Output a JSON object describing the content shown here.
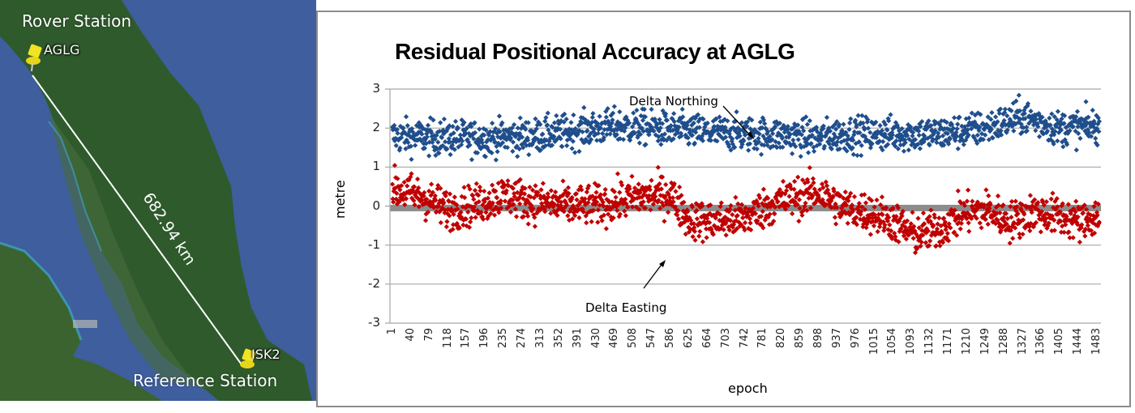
{
  "map": {
    "rover_label": "Rover Station",
    "rover_pin": "AGLG",
    "reference_label": "Reference Station",
    "reference_pin": "ISK2",
    "distance_label": "682.94 km",
    "icons": [
      "pushpin-icon",
      "pushpin-icon"
    ]
  },
  "chart_data": {
    "type": "scatter",
    "title": "Residual Positional Accuracy at AGLG",
    "xlabel": "epoch",
    "ylabel": "metre",
    "ylim": [
      -3,
      3
    ],
    "yticks": [
      "3",
      "2",
      "1",
      "0",
      "-1",
      "-2",
      "-3"
    ],
    "xticks": [
      "1",
      "40",
      "79",
      "118",
      "157",
      "196",
      "235",
      "274",
      "313",
      "352",
      "391",
      "430",
      "469",
      "508",
      "547",
      "586",
      "625",
      "664",
      "703",
      "742",
      "781",
      "820",
      "859",
      "898",
      "937",
      "976",
      "1015",
      "1054",
      "1093",
      "1132",
      "1171",
      "1210",
      "1249",
      "1288",
      "1327",
      "1366",
      "1405",
      "1444",
      "1483"
    ],
    "x_range": [
      1,
      1500
    ],
    "grid": true,
    "legend": "none",
    "reference_band": {
      "y": -0.05,
      "color": "#8c8c8c"
    },
    "annotations": [
      {
        "text": "Delta Northing",
        "points_to": "northing series"
      },
      {
        "text": "Delta Easting",
        "points_to": "easting series"
      }
    ],
    "series": [
      {
        "name": "Delta Northing",
        "color": "#1f4e8c",
        "trend_epochs": [
          1,
          100,
          200,
          300,
          400,
          469,
          550,
          650,
          750,
          850,
          898,
          950,
          1050,
          1150,
          1250,
          1327,
          1400,
          1500
        ],
        "trend_values": [
          1.8,
          1.75,
          1.75,
          1.8,
          1.95,
          2.05,
          2.0,
          1.9,
          1.85,
          1.8,
          1.75,
          1.85,
          1.85,
          1.85,
          2.0,
          2.3,
          2.0,
          2.05
        ],
        "spread": 0.22
      },
      {
        "name": "Delta Easting",
        "color": "#c00000",
        "trend_epochs": [
          1,
          60,
          120,
          180,
          240,
          300,
          380,
          450,
          520,
          586,
          625,
          680,
          740,
          820,
          898,
          950,
          1000,
          1050,
          1100,
          1150,
          1200,
          1250,
          1300,
          1350,
          1400,
          1450,
          1500
        ],
        "trend_values": [
          0.45,
          0.25,
          -0.1,
          0.05,
          0.3,
          0.1,
          0.0,
          0.05,
          0.25,
          0.3,
          -0.35,
          -0.4,
          -0.3,
          0.15,
          0.35,
          -0.05,
          -0.15,
          -0.35,
          -0.75,
          -0.6,
          -0.2,
          -0.1,
          -0.4,
          -0.15,
          -0.25,
          -0.4,
          -0.2
        ],
        "spread": 0.25
      }
    ]
  },
  "annotations": {
    "northing": "Delta Northing",
    "easting": "Delta Easting"
  }
}
